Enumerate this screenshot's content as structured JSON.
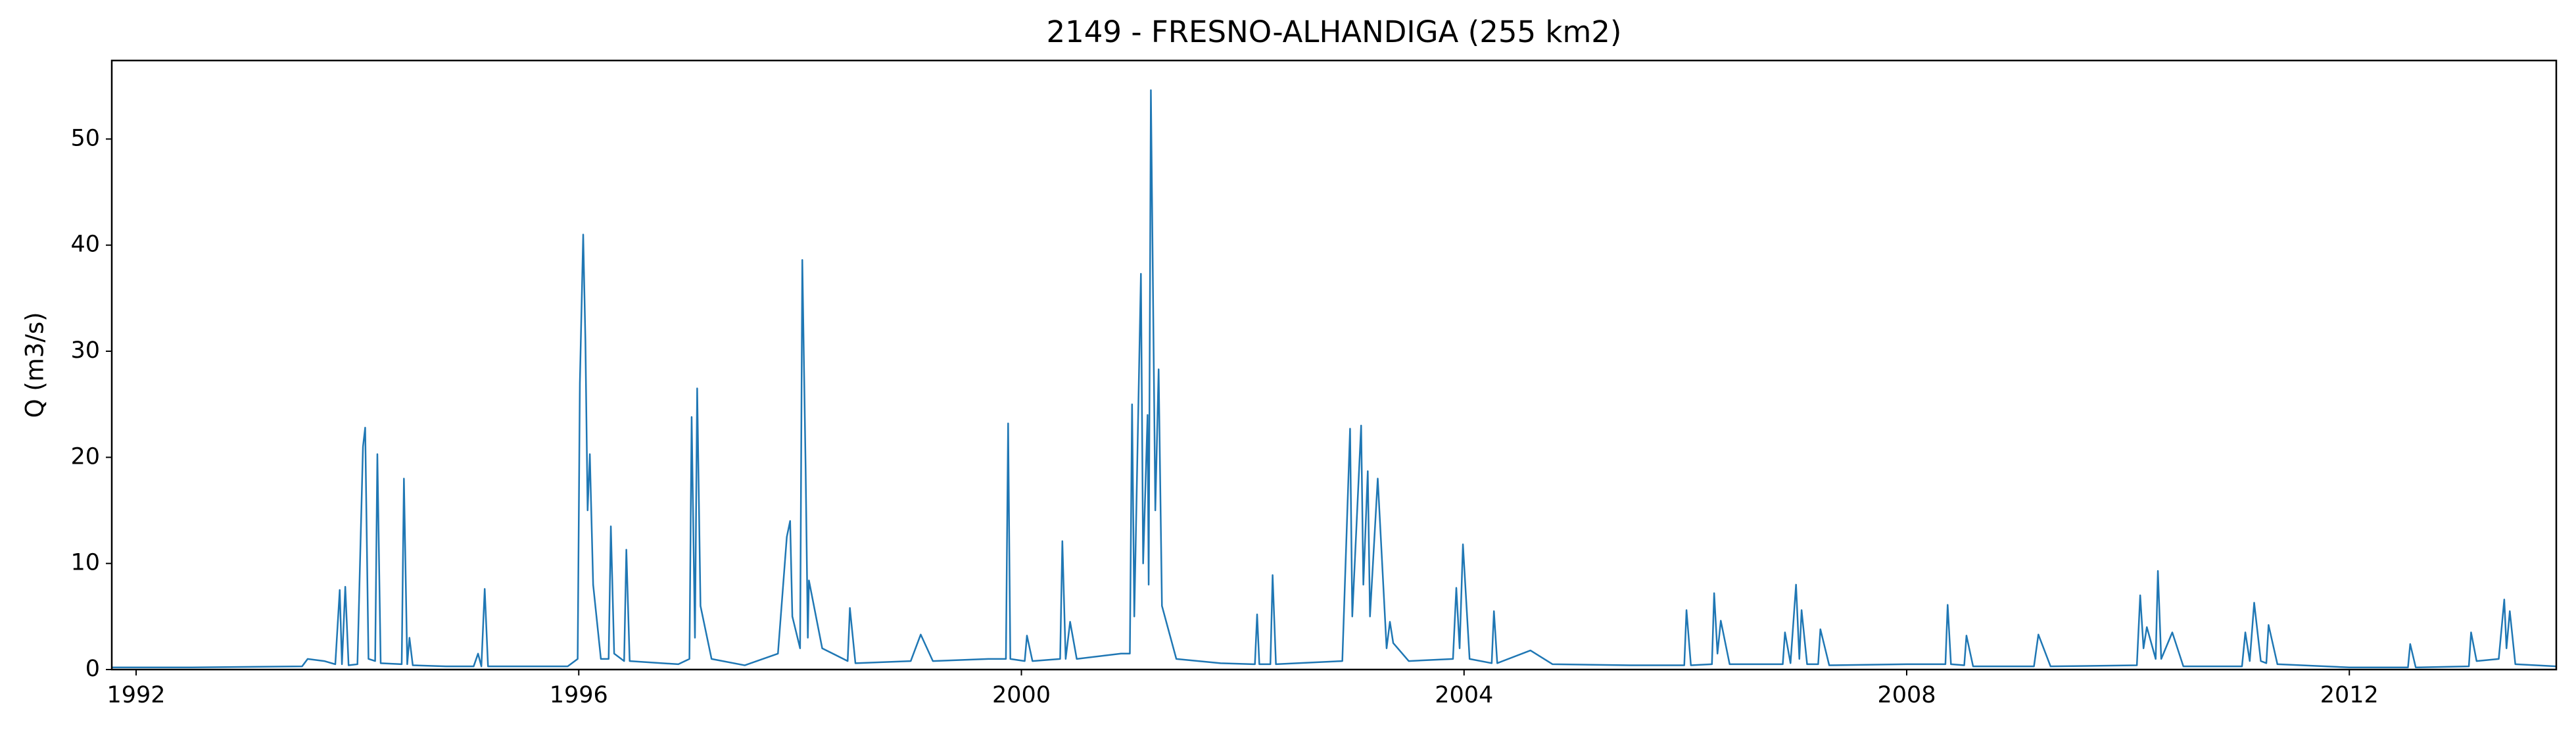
{
  "chart_data": {
    "type": "line",
    "title": "2149 - FRESNO-ALHANDIGA (255 km2)",
    "ylabel": "Q (m3/s)",
    "color": "#1f77b4",
    "xlim": [
      1991.78,
      2013.87
    ],
    "xticks": [
      1992,
      1996,
      2000,
      2004,
      2008,
      2012
    ],
    "ylim": [
      0,
      57.4
    ],
    "yticks": [
      0,
      10,
      20,
      30,
      40,
      50
    ],
    "x": [
      1991.78,
      1992.5,
      1993.5,
      1993.55,
      1993.7,
      1993.8,
      1993.84,
      1993.86,
      1993.89,
      1993.92,
      1994.0,
      1994.05,
      1994.07,
      1994.1,
      1994.16,
      1994.18,
      1994.21,
      1994.4,
      1994.42,
      1994.45,
      1994.47,
      1994.5,
      1994.8,
      1995.05,
      1995.09,
      1995.12,
      1995.15,
      1995.18,
      1995.9,
      1995.99,
      1996.01,
      1996.04,
      1996.06,
      1996.08,
      1996.1,
      1996.13,
      1996.2,
      1996.27,
      1996.29,
      1996.32,
      1996.41,
      1996.43,
      1996.46,
      1996.9,
      1997.0,
      1997.02,
      1997.05,
      1997.07,
      1997.1,
      1997.2,
      1997.5,
      1997.8,
      1997.88,
      1997.91,
      1997.93,
      1998.0,
      1998.02,
      1998.05,
      1998.07,
      1998.08,
      1998.2,
      1998.43,
      1998.45,
      1998.5,
      1999.0,
      1999.09,
      1999.2,
      1999.7,
      1999.86,
      1999.88,
      1999.9,
      2000.03,
      2000.05,
      2000.1,
      2000.35,
      2000.37,
      2000.4,
      2000.44,
      2000.5,
      2000.9,
      2000.98,
      2001.0,
      2001.02,
      2001.08,
      2001.1,
      2001.14,
      2001.15,
      2001.17,
      2001.21,
      2001.24,
      2001.27,
      2001.4,
      2001.8,
      2002.11,
      2002.13,
      2002.15,
      2002.25,
      2002.27,
      2002.3,
      2002.9,
      2002.97,
      2002.99,
      2003.07,
      2003.09,
      2003.13,
      2003.15,
      2003.22,
      2003.3,
      2003.33,
      2003.36,
      2003.5,
      2003.9,
      2003.93,
      2003.96,
      2003.99,
      2004.05,
      2004.25,
      2004.27,
      2004.3,
      2004.6,
      2004.8,
      2005.5,
      2005.99,
      2006.01,
      2006.05,
      2006.24,
      2006.26,
      2006.29,
      2006.32,
      2006.4,
      2006.88,
      2006.9,
      2006.95,
      2007.0,
      2007.03,
      2007.05,
      2007.1,
      2007.2,
      2007.22,
      2007.3,
      2008.0,
      2008.35,
      2008.37,
      2008.4,
      2008.52,
      2008.54,
      2008.6,
      2009.15,
      2009.19,
      2009.3,
      2010.08,
      2010.11,
      2010.14,
      2010.17,
      2010.25,
      2010.27,
      2010.3,
      2010.4,
      2010.5,
      2011.03,
      2011.06,
      2011.1,
      2011.14,
      2011.2,
      2011.25,
      2011.27,
      2011.35,
      2012.0,
      2012.53,
      2012.55,
      2012.6,
      2013.08,
      2013.1,
      2013.15,
      2013.35,
      2013.4,
      2013.42,
      2013.45,
      2013.5,
      2013.87
    ],
    "values": [
      0.2,
      0.2,
      0.3,
      1.0,
      0.8,
      0.5,
      7.5,
      0.5,
      7.8,
      0.4,
      0.5,
      21,
      22.8,
      1,
      0.8,
      20.3,
      0.6,
      0.5,
      18,
      0.5,
      3,
      0.4,
      0.3,
      0.3,
      1.5,
      0.3,
      7.6,
      0.3,
      0.3,
      1,
      27,
      41,
      31,
      15,
      20.3,
      8,
      1,
      1,
      13.5,
      1.5,
      0.8,
      11.3,
      0.8,
      0.5,
      1,
      23.8,
      3,
      26.5,
      6,
      1,
      0.4,
      1.5,
      12.5,
      14,
      5,
      2,
      38.6,
      19,
      3,
      8.4,
      2,
      0.8,
      5.8,
      0.6,
      0.8,
      3.3,
      0.8,
      1.0,
      1,
      23.2,
      1,
      0.8,
      3.2,
      0.8,
      1,
      12.1,
      1,
      4.5,
      1,
      1.5,
      1.5,
      25,
      5,
      37.3,
      10,
      24,
      8,
      54.6,
      15,
      28.3,
      6,
      1,
      0.6,
      0.5,
      5.2,
      0.5,
      0.5,
      8.9,
      0.5,
      0.8,
      22.7,
      5,
      23,
      8,
      18.7,
      5,
      18,
      2,
      4.5,
      2.5,
      0.8,
      1,
      7.7,
      2,
      11.8,
      1,
      0.6,
      5.5,
      0.6,
      1.8,
      0.5,
      0.4,
      0.4,
      5.6,
      0.4,
      0.5,
      7.2,
      1.5,
      4.6,
      0.5,
      0.5,
      3.5,
      0.6,
      8,
      1,
      5.6,
      0.5,
      0.5,
      3.8,
      0.4,
      0.5,
      0.5,
      6.1,
      0.5,
      0.4,
      3.2,
      0.3,
      0.3,
      3.3,
      0.3,
      0.4,
      7,
      2,
      4,
      1,
      9.3,
      1,
      3.5,
      0.3,
      0.3,
      3.5,
      0.8,
      6.3,
      0.8,
      0.6,
      4.2,
      0.5,
      0.2,
      0.2,
      2.4,
      0.2,
      0.3,
      3.5,
      0.8,
      1,
      6.6,
      2,
      5.5,
      0.5,
      0.3
    ]
  }
}
